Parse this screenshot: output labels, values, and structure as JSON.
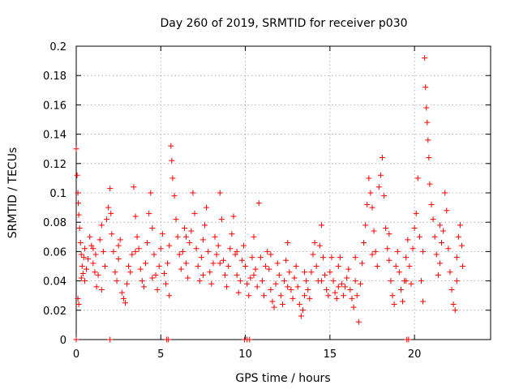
{
  "chart_data": {
    "type": "scatter",
    "title": "Day 260 of 2019, SRMTID for receiver p030",
    "xlabel": "GPS time / hours",
    "ylabel": "SRMTID / TECUs",
    "xlim": [
      0,
      24.5
    ],
    "ylim": [
      0,
      0.2
    ],
    "x_ticks": [
      0,
      5,
      10,
      15,
      20
    ],
    "x_tick_labels": [
      "0",
      "5",
      "10",
      "15",
      "20"
    ],
    "y_ticks": [
      0,
      0.02,
      0.04,
      0.06,
      0.08,
      0.1,
      0.12,
      0.14,
      0.16,
      0.18,
      0.2
    ],
    "y_tick_labels": [
      "0",
      "0.02",
      "0.04",
      "0.06",
      "0.08",
      "0.1",
      "0.12",
      "0.14",
      "0.16",
      "0.18",
      "0.2"
    ],
    "grid": true,
    "marker": "+",
    "marker_color": "#ff0000",
    "series": [
      {
        "name": "SRMTID",
        "points": [
          [
            0.0,
            0.13
          ],
          [
            0.05,
            0.112
          ],
          [
            0.1,
            0.1
          ],
          [
            0.12,
            0.093
          ],
          [
            0.15,
            0.085
          ],
          [
            0.2,
            0.076
          ],
          [
            0.25,
            0.066
          ],
          [
            0.3,
            0.058
          ],
          [
            0.35,
            0.05
          ],
          [
            0.4,
            0.045
          ],
          [
            0.1,
            0.028
          ],
          [
            0.15,
            0.024
          ],
          [
            0.3,
            0.042
          ],
          [
            0.45,
            0.056
          ],
          [
            0.5,
            0.062
          ],
          [
            0.6,
            0.048
          ],
          [
            0.7,
            0.055
          ],
          [
            0.8,
            0.07
          ],
          [
            0.9,
            0.064
          ],
          [
            1.0,
            0.052
          ],
          [
            1.1,
            0.046
          ],
          [
            1.15,
            0.058
          ],
          [
            1.2,
            0.036
          ],
          [
            1.3,
            0.044
          ],
          [
            1.4,
            0.068
          ],
          [
            1.5,
            0.078
          ],
          [
            1.6,
            0.06
          ],
          [
            1.7,
            0.05
          ],
          [
            1.8,
            0.082
          ],
          [
            1.9,
            0.09
          ],
          [
            2.0,
            0.103
          ],
          [
            2.05,
            0.086
          ],
          [
            2.1,
            0.072
          ],
          [
            2.2,
            0.06
          ],
          [
            2.3,
            0.046
          ],
          [
            2.4,
            0.04
          ],
          [
            2.5,
            0.055
          ],
          [
            2.6,
            0.068
          ],
          [
            2.7,
            0.032
          ],
          [
            2.8,
            0.028
          ],
          [
            2.9,
            0.025
          ],
          [
            3.0,
            0.038
          ],
          [
            3.1,
            0.05
          ],
          [
            3.2,
            0.046
          ],
          [
            3.3,
            0.058
          ],
          [
            3.4,
            0.104
          ],
          [
            3.5,
            0.084
          ],
          [
            3.6,
            0.07
          ],
          [
            3.7,
            0.062
          ],
          [
            3.8,
            0.048
          ],
          [
            3.9,
            0.04
          ],
          [
            4.0,
            0.036
          ],
          [
            4.1,
            0.052
          ],
          [
            4.2,
            0.066
          ],
          [
            4.3,
            0.086
          ],
          [
            4.4,
            0.1
          ],
          [
            4.5,
            0.076
          ],
          [
            4.6,
            0.058
          ],
          [
            4.7,
            0.044
          ],
          [
            4.8,
            0.034
          ],
          [
            4.9,
            0.05
          ],
          [
            5.0,
            0.062
          ],
          [
            5.1,
            0.072
          ],
          [
            5.2,
            0.045
          ],
          [
            5.3,
            0.038
          ],
          [
            5.4,
            0.052
          ],
          [
            5.5,
            0.064
          ],
          [
            5.6,
            0.132
          ],
          [
            5.65,
            0.122
          ],
          [
            5.7,
            0.11
          ],
          [
            5.8,
            0.098
          ],
          [
            5.9,
            0.082
          ],
          [
            6.0,
            0.07
          ],
          [
            6.1,
            0.058
          ],
          [
            6.2,
            0.048
          ],
          [
            6.3,
            0.06
          ],
          [
            6.4,
            0.076
          ],
          [
            6.5,
            0.052
          ],
          [
            6.6,
            0.042
          ],
          [
            6.7,
            0.066
          ],
          [
            6.8,
            0.074
          ],
          [
            6.9,
            0.1
          ],
          [
            7.0,
            0.086
          ],
          [
            7.1,
            0.062
          ],
          [
            7.2,
            0.05
          ],
          [
            7.3,
            0.04
          ],
          [
            7.4,
            0.056
          ],
          [
            7.5,
            0.068
          ],
          [
            7.6,
            0.078
          ],
          [
            7.7,
            0.09
          ],
          [
            7.8,
            0.06
          ],
          [
            7.9,
            0.046
          ],
          [
            8.0,
            0.038
          ],
          [
            8.1,
            0.052
          ],
          [
            8.2,
            0.07
          ],
          [
            8.3,
            0.058
          ],
          [
            8.4,
            0.064
          ],
          [
            8.5,
            0.1
          ],
          [
            8.6,
            0.082
          ],
          [
            8.7,
            0.054
          ],
          [
            8.8,
            0.044
          ],
          [
            8.9,
            0.036
          ],
          [
            9.0,
            0.05
          ],
          [
            9.1,
            0.062
          ],
          [
            9.2,
            0.072
          ],
          [
            9.3,
            0.084
          ],
          [
            9.4,
            0.058
          ],
          [
            9.5,
            0.044
          ],
          [
            9.6,
            0.032
          ],
          [
            9.7,
            0.04
          ],
          [
            9.8,
            0.054
          ],
          [
            9.9,
            0.064
          ],
          [
            10.0,
            0.05
          ],
          [
            10.1,
            0.038
          ],
          [
            10.2,
            0.03
          ],
          [
            10.3,
            0.042
          ],
          [
            10.4,
            0.056
          ],
          [
            10.5,
            0.07
          ],
          [
            10.6,
            0.048
          ],
          [
            10.7,
            0.036
          ],
          [
            10.8,
            0.093
          ],
          [
            10.9,
            0.056
          ],
          [
            11.0,
            0.04
          ],
          [
            11.1,
            0.03
          ],
          [
            11.2,
            0.05
          ],
          [
            11.3,
            0.06
          ],
          [
            11.4,
            0.048
          ],
          [
            11.5,
            0.034
          ],
          [
            11.6,
            0.026
          ],
          [
            11.7,
            0.022
          ],
          [
            11.8,
            0.038
          ],
          [
            11.9,
            0.052
          ],
          [
            12.0,
            0.044
          ],
          [
            12.1,
            0.03
          ],
          [
            12.2,
            0.024
          ],
          [
            12.3,
            0.04
          ],
          [
            12.4,
            0.054
          ],
          [
            12.5,
            0.066
          ],
          [
            12.6,
            0.046
          ],
          [
            12.7,
            0.034
          ],
          [
            12.8,
            0.028
          ],
          [
            12.9,
            0.042
          ],
          [
            13.0,
            0.05
          ],
          [
            13.1,
            0.036
          ],
          [
            13.2,
            0.024
          ],
          [
            13.3,
            0.016
          ],
          [
            13.4,
            0.02
          ],
          [
            13.5,
            0.03
          ],
          [
            13.6,
            0.04
          ],
          [
            13.7,
            0.034
          ],
          [
            13.8,
            0.028
          ],
          [
            13.9,
            0.046
          ],
          [
            14.0,
            0.058
          ],
          [
            14.1,
            0.066
          ],
          [
            14.2,
            0.05
          ],
          [
            14.3,
            0.04
          ],
          [
            14.4,
            0.064
          ],
          [
            14.5,
            0.078
          ],
          [
            14.6,
            0.056
          ],
          [
            14.7,
            0.044
          ],
          [
            14.8,
            0.034
          ],
          [
            14.9,
            0.03
          ],
          [
            15.0,
            0.046
          ],
          [
            15.1,
            0.056
          ],
          [
            15.2,
            0.04
          ],
          [
            15.3,
            0.032
          ],
          [
            15.4,
            0.028
          ],
          [
            15.5,
            0.05
          ],
          [
            15.6,
            0.056
          ],
          [
            15.7,
            0.038
          ],
          [
            15.8,
            0.03
          ],
          [
            15.9,
            0.036
          ],
          [
            16.0,
            0.042
          ],
          [
            16.1,
            0.048
          ],
          [
            16.2,
            0.034
          ],
          [
            16.3,
            0.028
          ],
          [
            16.4,
            0.022
          ],
          [
            16.5,
            0.04
          ],
          [
            16.6,
            0.03
          ],
          [
            16.7,
            0.012
          ],
          [
            16.8,
            0.038
          ],
          [
            16.9,
            0.052
          ],
          [
            17.0,
            0.066
          ],
          [
            17.1,
            0.078
          ],
          [
            17.2,
            0.092
          ],
          [
            17.3,
            0.11
          ],
          [
            17.4,
            0.1
          ],
          [
            17.5,
            0.09
          ],
          [
            17.6,
            0.074
          ],
          [
            17.7,
            0.06
          ],
          [
            17.8,
            0.05
          ],
          [
            17.9,
            0.104
          ],
          [
            18.0,
            0.112
          ],
          [
            18.1,
            0.124
          ],
          [
            18.2,
            0.098
          ],
          [
            18.3,
            0.076
          ],
          [
            18.4,
            0.062
          ],
          [
            18.5,
            0.054
          ],
          [
            18.6,
            0.04
          ],
          [
            18.7,
            0.03
          ],
          [
            18.8,
            0.024
          ],
          [
            18.9,
            0.05
          ],
          [
            19.0,
            0.06
          ],
          [
            19.1,
            0.046
          ],
          [
            19.2,
            0.034
          ],
          [
            19.3,
            0.026
          ],
          [
            19.4,
            0.04
          ],
          [
            19.5,
            0.056
          ],
          [
            19.6,
            0.068
          ],
          [
            19.7,
            0.05
          ],
          [
            19.8,
            0.038
          ],
          [
            19.9,
            0.062
          ],
          [
            20.0,
            0.076
          ],
          [
            20.1,
            0.086
          ],
          [
            20.2,
            0.11
          ],
          [
            20.3,
            0.07
          ],
          [
            20.4,
            0.04
          ],
          [
            20.5,
            0.026
          ],
          [
            20.6,
            0.192
          ],
          [
            20.65,
            0.172
          ],
          [
            20.7,
            0.158
          ],
          [
            20.75,
            0.148
          ],
          [
            20.8,
            0.136
          ],
          [
            20.85,
            0.124
          ],
          [
            20.9,
            0.106
          ],
          [
            21.0,
            0.092
          ],
          [
            21.1,
            0.082
          ],
          [
            21.2,
            0.07
          ],
          [
            21.3,
            0.058
          ],
          [
            21.4,
            0.044
          ],
          [
            21.5,
            0.052
          ],
          [
            21.6,
            0.066
          ],
          [
            21.7,
            0.074
          ],
          [
            21.8,
            0.1
          ],
          [
            21.9,
            0.088
          ],
          [
            22.0,
            0.062
          ],
          [
            22.1,
            0.046
          ],
          [
            22.2,
            0.034
          ],
          [
            22.3,
            0.024
          ],
          [
            22.4,
            0.02
          ],
          [
            22.5,
            0.056
          ],
          [
            22.6,
            0.07
          ],
          [
            22.7,
            0.078
          ],
          [
            22.8,
            0.064
          ],
          [
            22.85,
            0.05
          ],
          [
            0.5,
            0.04
          ],
          [
            1.0,
            0.062
          ],
          [
            1.5,
            0.034
          ],
          [
            2.5,
            0.064
          ],
          [
            3.5,
            0.06
          ],
          [
            4.5,
            0.042
          ],
          [
            5.5,
            0.03
          ],
          [
            6.5,
            0.07
          ],
          [
            7.5,
            0.044
          ],
          [
            8.5,
            0.052
          ],
          [
            9.5,
            0.06
          ],
          [
            10.5,
            0.044
          ],
          [
            11.5,
            0.058
          ],
          [
            12.5,
            0.036
          ],
          [
            13.5,
            0.046
          ],
          [
            14.5,
            0.04
          ],
          [
            15.5,
            0.036
          ],
          [
            16.5,
            0.056
          ],
          [
            17.5,
            0.058
          ],
          [
            18.5,
            0.072
          ],
          [
            19.5,
            0.04
          ],
          [
            20.5,
            0.06
          ],
          [
            21.5,
            0.078
          ],
          [
            22.5,
            0.04
          ],
          [
            0.0,
            0.0
          ],
          [
            2.0,
            0.0
          ],
          [
            5.35,
            0.0
          ],
          [
            5.45,
            0.0
          ],
          [
            9.95,
            0.0
          ],
          [
            10.1,
            0.0
          ],
          [
            10.25,
            0.0
          ],
          [
            19.55,
            0.0
          ],
          [
            19.65,
            0.0
          ]
        ]
      }
    ]
  }
}
